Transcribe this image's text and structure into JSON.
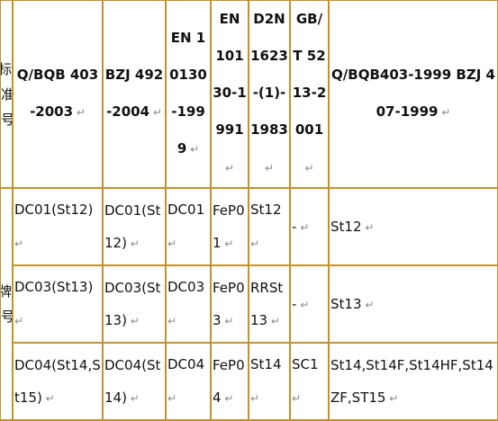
{
  "table": {
    "columns": [
      "标准号",
      "Q/BQB 403-2003",
      "BZJ 492-2004",
      "EN 10130-1999",
      "EN 10130-1991",
      "D2N 1623-(1)-1983",
      "GB/T 5213-2001",
      "Q/BQB403-1999 BZJ 407-1999"
    ],
    "row_header": "牌号",
    "rows": [
      [
        "DC01(St12)",
        "DC01(St12)",
        "DC01",
        "FeP01",
        "St12",
        "-",
        "St12"
      ],
      [
        "DC03(St13)",
        "DC03(St13)",
        "DC03",
        "FeP03",
        "RRSt13",
        "-",
        "St13"
      ],
      [
        "DC04(St14,St15)",
        "DC04(St14)",
        "DC04",
        "FeP04",
        "St14",
        "SC1",
        "St14,St14F,St14HF,St14ZF,ST15"
      ]
    ]
  }
}
